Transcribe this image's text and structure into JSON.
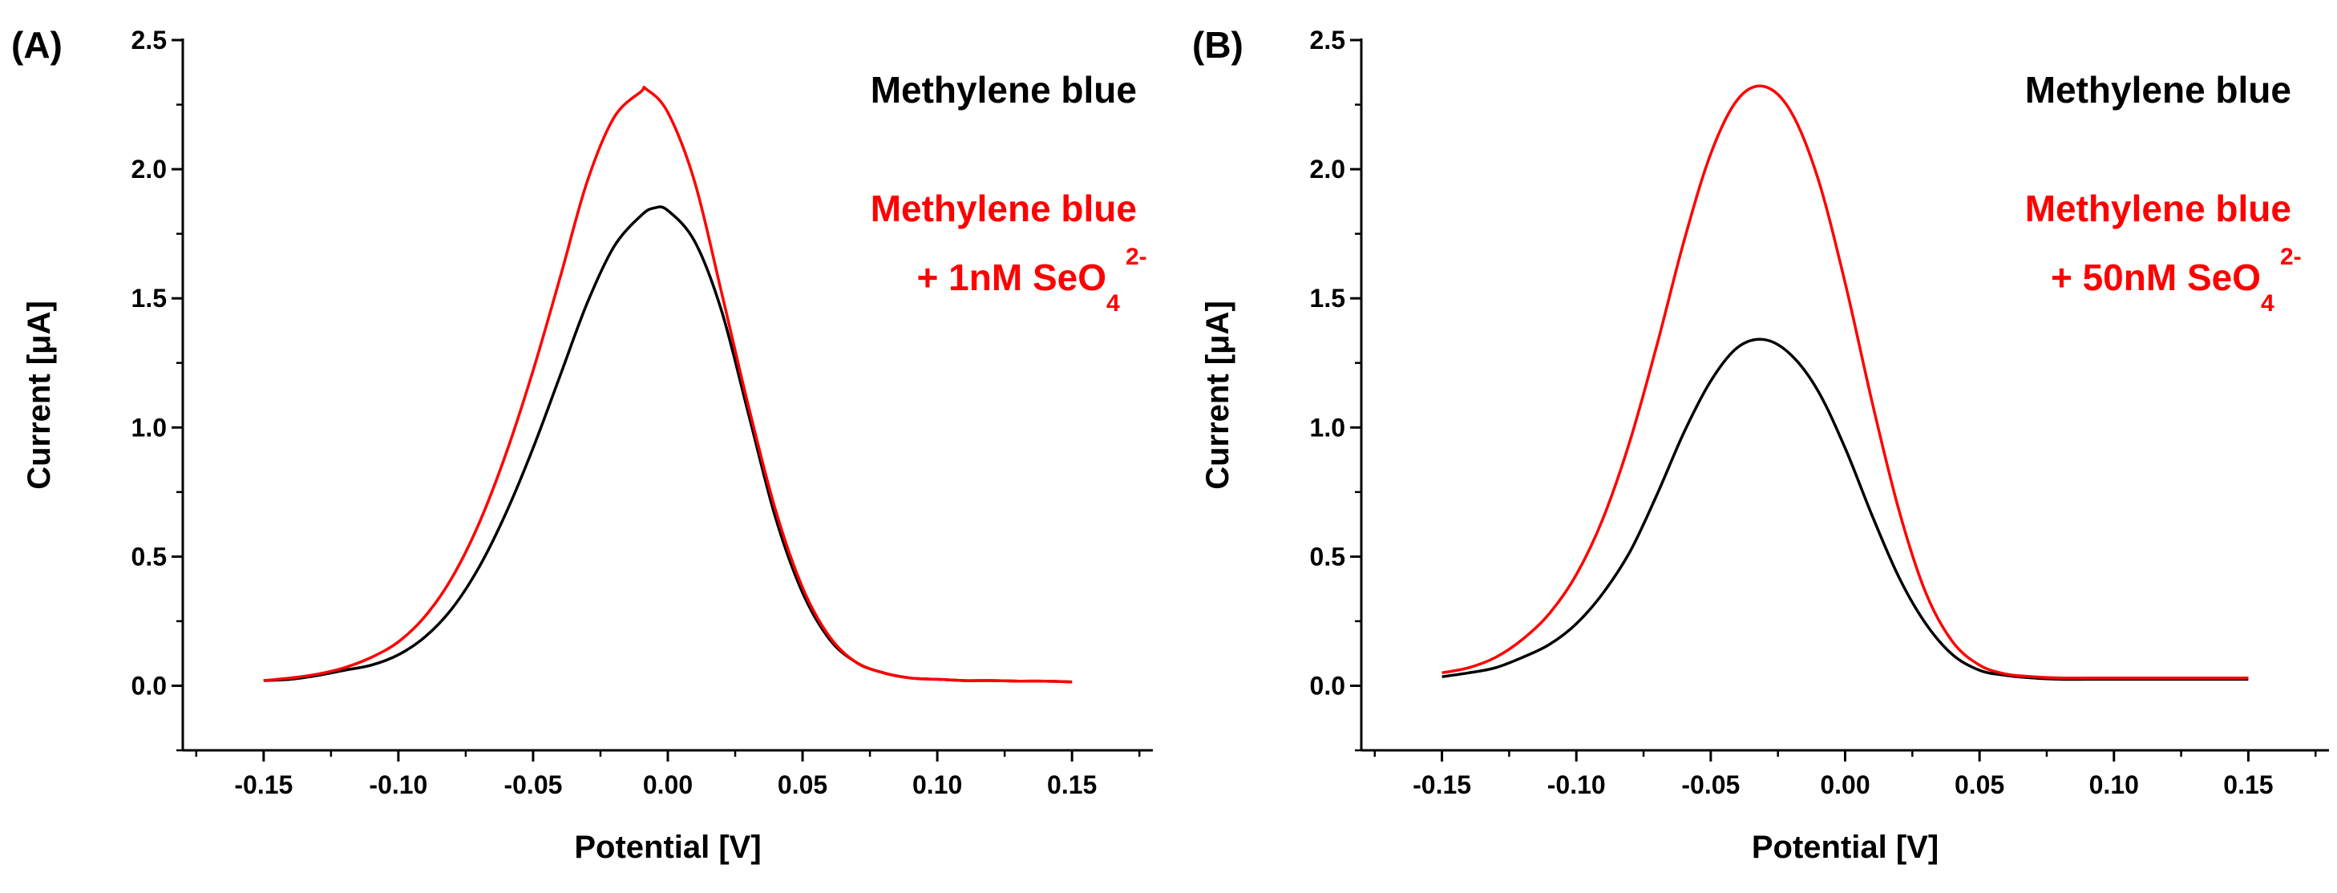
{
  "chart_data": [
    {
      "type": "line",
      "panel_label": "(A)",
      "xlabel": "Potential [V]",
      "ylabel": "Current [μA]",
      "xlim": [
        -0.18,
        0.18
      ],
      "ylim": [
        -0.25,
        2.5
      ],
      "xticks": [
        -0.15,
        -0.1,
        -0.05,
        0.0,
        0.05,
        0.1,
        0.15
      ],
      "xtick_labels": [
        "-0.15",
        "-0.10",
        "-0.05",
        "0.00",
        "0.05",
        "0.10",
        "0.15"
      ],
      "yticks": [
        0.0,
        0.5,
        1.0,
        1.5,
        2.0,
        2.5
      ],
      "ytick_labels": [
        "0.0",
        "0.5",
        "1.0",
        "1.5",
        "2.0",
        "2.5"
      ],
      "legend": {
        "entry1": "Methylene blue",
        "entry2_line1": "Methylene blue",
        "entry2_line2": "+ 1nM SeO",
        "entry2_sub": "4",
        "entry2_sup": "2-"
      },
      "series": [
        {
          "name": "Methylene blue",
          "color": "#000000",
          "x": [
            -0.15,
            -0.14,
            -0.13,
            -0.12,
            -0.11,
            -0.1,
            -0.09,
            -0.08,
            -0.07,
            -0.06,
            -0.05,
            -0.04,
            -0.03,
            -0.02,
            -0.01,
            -0.005,
            0.0,
            0.01,
            0.02,
            0.03,
            0.04,
            0.05,
            0.06,
            0.07,
            0.08,
            0.09,
            0.1,
            0.11,
            0.12,
            0.13,
            0.14,
            0.15
          ],
          "y": [
            0.02,
            0.025,
            0.04,
            0.06,
            0.08,
            0.12,
            0.19,
            0.3,
            0.46,
            0.67,
            0.92,
            1.2,
            1.48,
            1.7,
            1.82,
            1.85,
            1.84,
            1.72,
            1.45,
            1.05,
            0.65,
            0.36,
            0.18,
            0.09,
            0.05,
            0.03,
            0.025,
            0.02,
            0.02,
            0.018,
            0.018,
            0.015
          ]
        },
        {
          "name": "Methylene blue + 1nM SeO4 2-",
          "color": "#ff0000",
          "x": [
            -0.15,
            -0.14,
            -0.13,
            -0.12,
            -0.11,
            -0.1,
            -0.09,
            -0.08,
            -0.07,
            -0.06,
            -0.05,
            -0.04,
            -0.03,
            -0.02,
            -0.01,
            -0.008,
            0.0,
            0.01,
            0.02,
            0.03,
            0.04,
            0.05,
            0.06,
            0.07,
            0.08,
            0.09,
            0.1,
            0.11,
            0.12,
            0.13,
            0.14,
            0.15
          ],
          "y": [
            0.02,
            0.03,
            0.045,
            0.07,
            0.11,
            0.17,
            0.27,
            0.42,
            0.63,
            0.9,
            1.22,
            1.58,
            1.95,
            2.2,
            2.3,
            2.31,
            2.22,
            1.95,
            1.52,
            1.08,
            0.68,
            0.38,
            0.19,
            0.09,
            0.05,
            0.03,
            0.025,
            0.02,
            0.02,
            0.018,
            0.018,
            0.015
          ]
        }
      ]
    },
    {
      "type": "line",
      "panel_label": "(B)",
      "xlabel": "Potential [V]",
      "ylabel": "Current [μA]",
      "xlim": [
        -0.18,
        0.18
      ],
      "ylim": [
        -0.25,
        2.5
      ],
      "xticks": [
        -0.15,
        -0.1,
        -0.05,
        0.0,
        0.05,
        0.1,
        0.15
      ],
      "xtick_labels": [
        "-0.15",
        "-0.10",
        "-0.05",
        "0.00",
        "0.05",
        "0.10",
        "0.15"
      ],
      "yticks": [
        0.0,
        0.5,
        1.0,
        1.5,
        2.0,
        2.5
      ],
      "ytick_labels": [
        "0.0",
        "0.5",
        "1.0",
        "1.5",
        "2.0",
        "2.5"
      ],
      "legend": {
        "entry1": "Methylene blue",
        "entry2_line1": "Methylene blue",
        "entry2_line2": "+ 50nM SeO",
        "entry2_sub": "4",
        "entry2_sup": "2-"
      },
      "series": [
        {
          "name": "Methylene blue",
          "color": "#000000",
          "x": [
            -0.15,
            -0.14,
            -0.13,
            -0.12,
            -0.11,
            -0.1,
            -0.09,
            -0.08,
            -0.07,
            -0.06,
            -0.05,
            -0.04,
            -0.03,
            -0.02,
            -0.01,
            0.0,
            0.01,
            0.02,
            0.03,
            0.04,
            0.05,
            0.06,
            0.07,
            0.08,
            0.09,
            0.1,
            0.11,
            0.12,
            0.13,
            0.14,
            0.15
          ],
          "y": [
            0.035,
            0.05,
            0.07,
            0.11,
            0.16,
            0.24,
            0.36,
            0.52,
            0.74,
            0.98,
            1.18,
            1.31,
            1.34,
            1.28,
            1.14,
            0.92,
            0.66,
            0.42,
            0.24,
            0.12,
            0.06,
            0.04,
            0.03,
            0.025,
            0.025,
            0.025,
            0.025,
            0.025,
            0.025,
            0.025,
            0.025
          ]
        },
        {
          "name": "Methylene blue + 50nM SeO4 2-",
          "color": "#ff0000",
          "x": [
            -0.15,
            -0.14,
            -0.13,
            -0.12,
            -0.11,
            -0.1,
            -0.09,
            -0.08,
            -0.07,
            -0.06,
            -0.05,
            -0.04,
            -0.03,
            -0.02,
            -0.01,
            0.0,
            0.01,
            0.02,
            0.03,
            0.04,
            0.05,
            0.06,
            0.07,
            0.08,
            0.09,
            0.1,
            0.11,
            0.12,
            0.13,
            0.14,
            0.15
          ],
          "y": [
            0.05,
            0.07,
            0.11,
            0.18,
            0.28,
            0.43,
            0.65,
            0.95,
            1.32,
            1.72,
            2.06,
            2.27,
            2.32,
            2.22,
            1.96,
            1.56,
            1.1,
            0.68,
            0.36,
            0.17,
            0.08,
            0.045,
            0.035,
            0.03,
            0.03,
            0.03,
            0.03,
            0.03,
            0.03,
            0.03,
            0.03
          ]
        }
      ]
    }
  ]
}
